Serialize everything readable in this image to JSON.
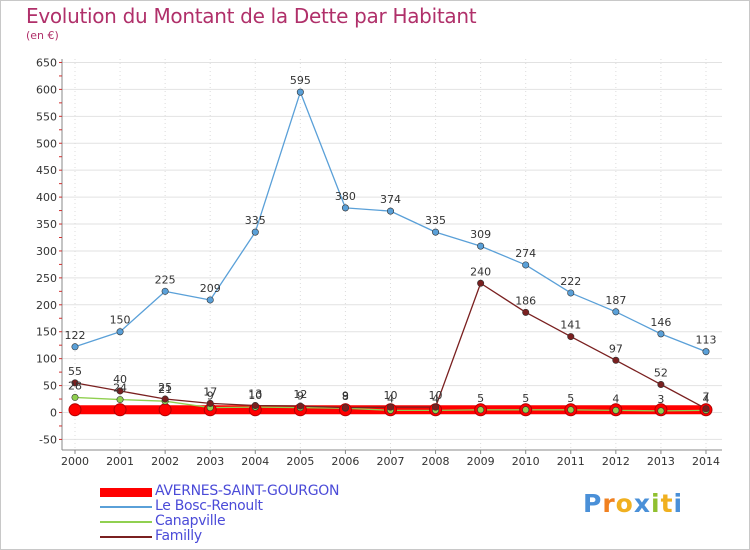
{
  "title": "Evolution du Montant de la Dette par Habitant",
  "subtitle": "(en €)",
  "logo": "Proxiti",
  "chart_data": {
    "type": "line",
    "title": "Evolution du Montant de la Dette par Habitant",
    "ylabel": "(en €)",
    "xlabel": "",
    "ylim": [
      -50,
      650
    ],
    "yticks": [
      -50,
      0,
      50,
      100,
      150,
      200,
      250,
      300,
      350,
      400,
      450,
      500,
      550,
      600,
      650
    ],
    "categories": [
      "2000",
      "2001",
      "2002",
      "2003",
      "2004",
      "2005",
      "2006",
      "2007",
      "2008",
      "2009",
      "2010",
      "2011",
      "2012",
      "2013",
      "2014"
    ],
    "legend_position": "bottom-left",
    "series": [
      {
        "name": "AVERNES-SAINT-GOURGON",
        "color": "#ff0000",
        "style": "thick",
        "values": [
          5,
          5,
          5,
          5,
          5,
          5,
          5,
          5,
          5,
          5,
          5,
          5,
          5,
          5,
          5
        ],
        "labels": []
      },
      {
        "name": "Le Bosc-Renoult",
        "color": "#5aa0d8",
        "style": "normal",
        "values": [
          122,
          150,
          225,
          209,
          335,
          595,
          380,
          374,
          335,
          309,
          274,
          222,
          187,
          146,
          113
        ],
        "labels": [
          "122",
          "150",
          "225",
          "209",
          "335",
          "595",
          "380",
          "374",
          "335",
          "309",
          "274",
          "222",
          "187",
          "146",
          "113"
        ]
      },
      {
        "name": "Canapville",
        "color": "#90d050",
        "style": "normal",
        "values": [
          28,
          24,
          21,
          9,
          10,
          9,
          8,
          4,
          4,
          5,
          5,
          5,
          4,
          3,
          4
        ],
        "labels": [
          "28",
          "24",
          "21",
          "9",
          "10",
          "9",
          "8",
          "4",
          "4",
          "5",
          "5",
          "5",
          "4",
          "3",
          "4"
        ]
      },
      {
        "name": "Familly",
        "color": "#7a2020",
        "style": "normal",
        "values": [
          55,
          40,
          25,
          17,
          13,
          12,
          9,
          10,
          10,
          240,
          186,
          141,
          97,
          52,
          7
        ],
        "labels": [
          "55",
          "40",
          "25",
          "17",
          "13",
          "12",
          "9",
          "10",
          "10",
          "240",
          "186",
          "141",
          "97",
          "52",
          "7"
        ]
      }
    ]
  }
}
